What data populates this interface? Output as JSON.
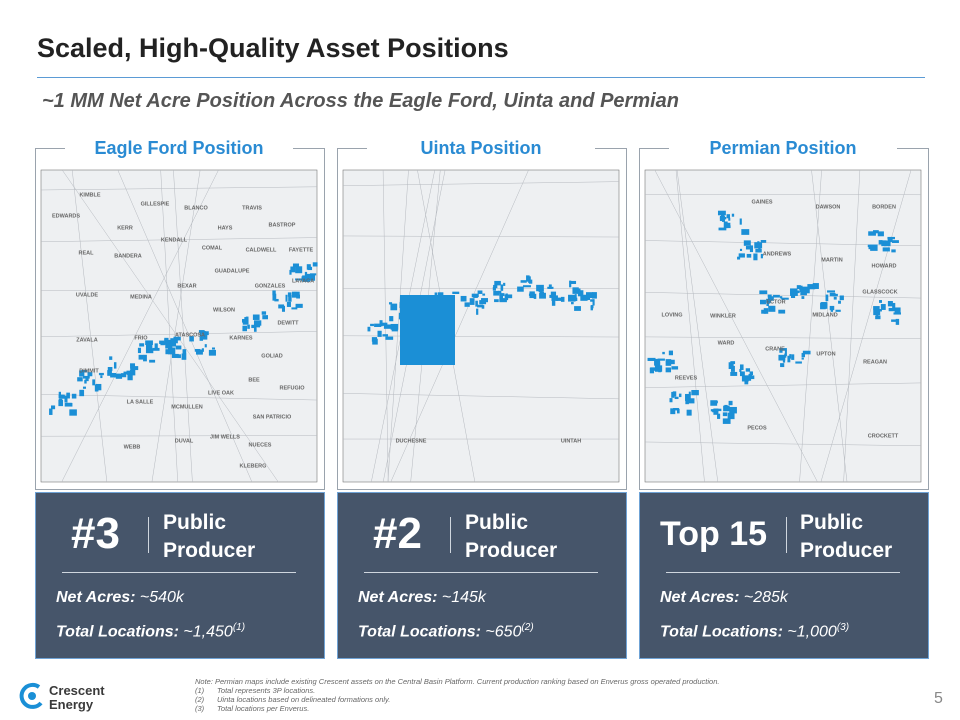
{
  "header": {
    "title": "Scaled, High-Quality Asset Positions",
    "subtitle": "~1 MM Net Acre Position Across the Eagle Ford, Uinta and Permian"
  },
  "panels": [
    {
      "heading": "Eagle Ford Position",
      "counties": [
        "KIMBLE",
        "GILLESPIE",
        "BLANCO",
        "TRAVIS",
        "EDWARDS",
        "KERR",
        "HAYS",
        "BASTROP",
        "KENDALL",
        "COMAL",
        "CALDWELL",
        "FAYETTE",
        "REAL",
        "BANDERA",
        "GUADALUPE",
        "BEXAR",
        "GONZALES",
        "LAVACA",
        "UVALDE",
        "MEDINA",
        "WILSON",
        "DEWITT",
        "ZAVALA",
        "FRIO",
        "ATASCOSA",
        "KARNES",
        "GOLIAD",
        "DIMMIT",
        "LIVE OAK",
        "BEE",
        "REFUGIO",
        "LA SALLE",
        "MCMULLEN",
        "SAN PATRICIO",
        "JIM WELLS",
        "DUVAL",
        "NUECES",
        "WEBB",
        "KLEBERG"
      ],
      "rank": "#3",
      "rank_label": "Public Producer",
      "stats": [
        {
          "label": "Net Acres:",
          "value": "~540k"
        },
        {
          "label": "Total Locations:",
          "value": "~1,450",
          "note": "(1)"
        }
      ]
    },
    {
      "heading": "Uinta Position",
      "counties": [
        "DUCHESNE",
        "UINTAH"
      ],
      "rank": "#2",
      "rank_label": "Public Producer",
      "stats": [
        {
          "label": "Net Acres:",
          "value": "~145k"
        },
        {
          "label": "Total Locations:",
          "value": "~650",
          "note": "(2)"
        }
      ]
    },
    {
      "heading": "Permian Position",
      "counties": [
        "GAINES",
        "DAWSON",
        "BORDEN",
        "ANDREWS",
        "MARTIN",
        "HOWARD",
        "ECTOR",
        "GLASSCOCK",
        "LOVING",
        "WINKLER",
        "MIDLAND",
        "WARD",
        "CRANE",
        "UPTON",
        "REAGAN",
        "REEVES",
        "PECOS",
        "CROCKETT"
      ],
      "rank": "Top 15",
      "rank_label": "Public Producer",
      "stats": [
        {
          "label": "Net Acres:",
          "value": "~285k"
        },
        {
          "label": "Total Locations:",
          "value": "~1,000",
          "note": "(3)"
        }
      ]
    }
  ],
  "footnotes": {
    "note": "Note: Permian maps include existing Crescent assets on the Central Basin Platform. Current production ranking based on Enverus gross operated production.",
    "items": [
      {
        "marker": "(1)",
        "text": "Total represents 3P locations."
      },
      {
        "marker": "(2)",
        "text": "Uinta locations based on delineated formations only."
      },
      {
        "marker": "(3)",
        "text": "Total locations per Enverus."
      }
    ]
  },
  "page_number": "5",
  "logo": {
    "line1": "Crescent",
    "line2": "Energy"
  }
}
